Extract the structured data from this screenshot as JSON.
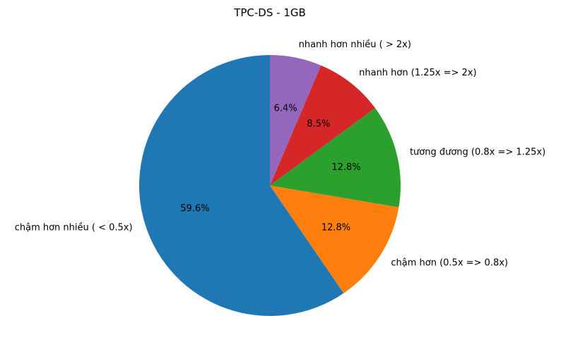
{
  "chart_data": {
    "type": "pie",
    "title": "TPC-DS - 1GB",
    "start_angle_deg": 90,
    "direction": "counterclockwise",
    "slices": [
      {
        "label": "chậm hơn nhiều ( < 0.5x)",
        "value": 59.6,
        "pct_text": "59.6%",
        "color": "#1f77b4"
      },
      {
        "label": "chậm hơn (0.5x => 0.8x)",
        "value": 12.8,
        "pct_text": "12.8%",
        "color": "#ff7f0e"
      },
      {
        "label": "tương đương (0.8x => 1.25x)",
        "value": 12.8,
        "pct_text": "12.8%",
        "color": "#2ca02c"
      },
      {
        "label": "nhanh hơn (1.25x => 2x)",
        "value": 8.5,
        "pct_text": "8.5%",
        "color": "#d62728"
      },
      {
        "label": "nhanh hơn nhiều ( > 2x)",
        "value": 6.4,
        "pct_text": "6.4%",
        "color": "#9467bd"
      }
    ]
  }
}
